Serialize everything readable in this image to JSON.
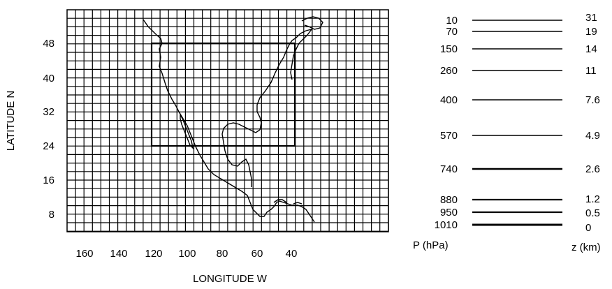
{
  "map": {
    "y_axis_label": "LATITUDE N",
    "x_axis_label": "LONGITUDE W",
    "lat_ticks": [
      "48",
      "40",
      "32",
      "24",
      "16",
      "8"
    ],
    "lon_ticks": [
      "160",
      "140",
      "120",
      "100",
      "80",
      "60",
      "40"
    ],
    "grid_color": "#000000"
  },
  "levels": {
    "pressure_header": "P (hPa)",
    "height_header": "z (km)",
    "rows": [
      {
        "p": "10",
        "z": "31"
      },
      {
        "p": "70",
        "z": "19"
      },
      {
        "p": "150",
        "z": "14"
      },
      {
        "p": "260",
        "z": "11"
      },
      {
        "p": "400",
        "z": "7.6"
      },
      {
        "p": "570",
        "z": "4.9"
      },
      {
        "p": "740",
        "z": "2.6"
      },
      {
        "p": "880",
        "z": "1.2"
      },
      {
        "p": "950",
        "z": "0.5"
      },
      {
        "p": "1010",
        "z": "0"
      }
    ]
  }
}
